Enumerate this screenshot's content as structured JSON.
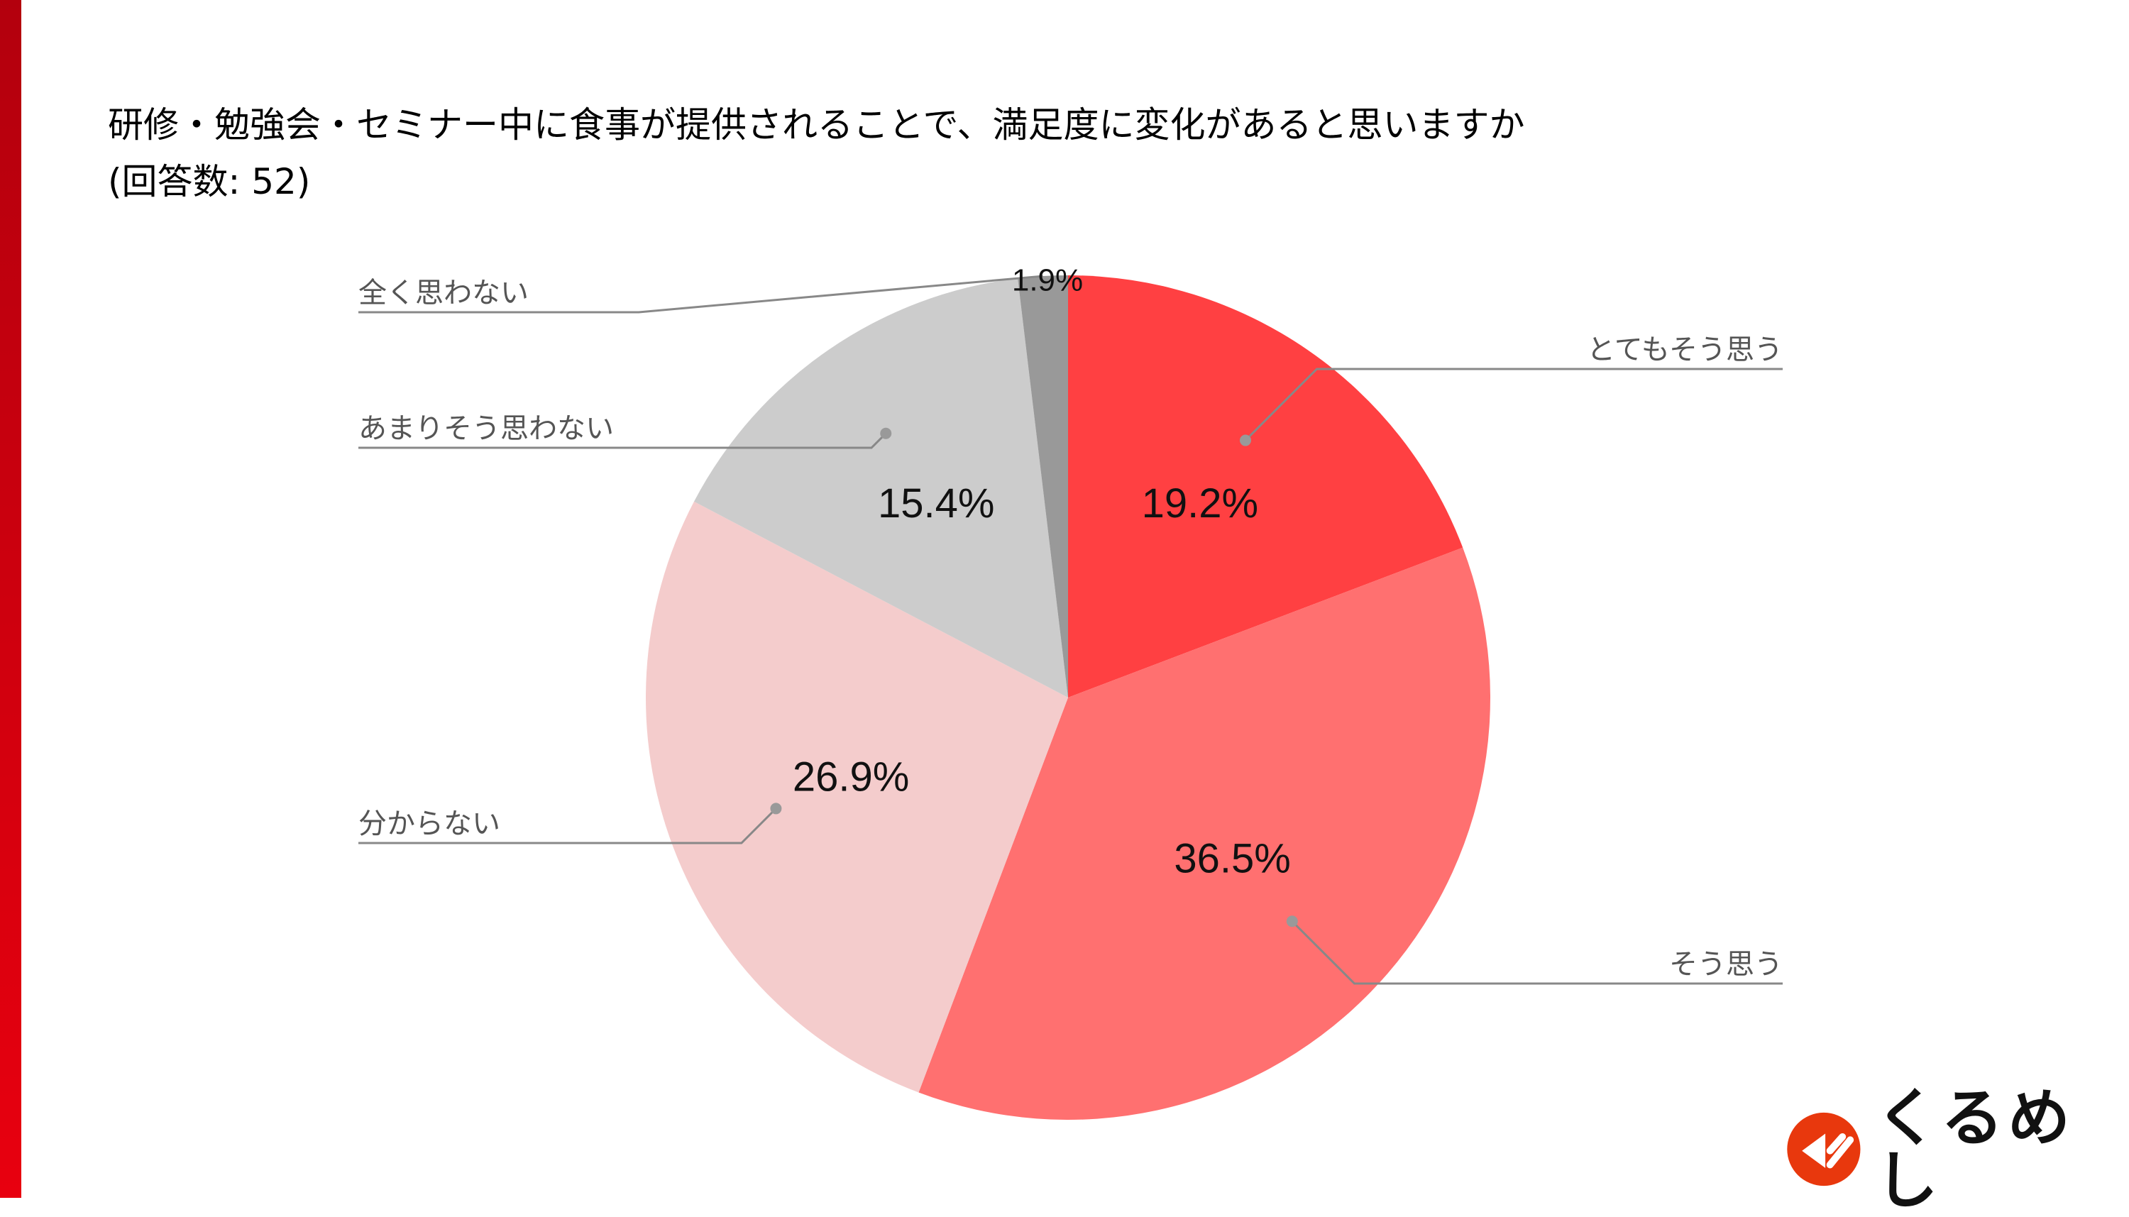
{
  "title": {
    "line1": "研修・勉強会・セミナー中に食事が提供されることで、満足度に変化があると思いますか",
    "line2": "(回答数: 52)"
  },
  "logo": {
    "text": "くるめし"
  },
  "colors": {
    "accent": "#d8000e",
    "brand": "#e8380d"
  },
  "chart_data": {
    "type": "pie",
    "title": "研修・勉強会・セミナー中に食事が提供されることで、満足度に変化があると思いますか",
    "subtitle": "(回答数: 52)",
    "start_angle": "12 o'clock",
    "direction": "clockwise",
    "slices": [
      {
        "label": "とてもそう思う",
        "value": 19.2,
        "display": "19.2%",
        "color": "#ff4042"
      },
      {
        "label": "そう思う",
        "value": 36.5,
        "display": "36.5%",
        "color": "#ff7070"
      },
      {
        "label": "分からない",
        "value": 26.9,
        "display": "26.9%",
        "color": "#f4cccc"
      },
      {
        "label": "あまりそう思わない",
        "value": 15.4,
        "display": "15.4%",
        "color": "#cccccc"
      },
      {
        "label": "全く思わない",
        "value": 1.9,
        "display": "1.9%",
        "color": "#999999"
      }
    ]
  }
}
